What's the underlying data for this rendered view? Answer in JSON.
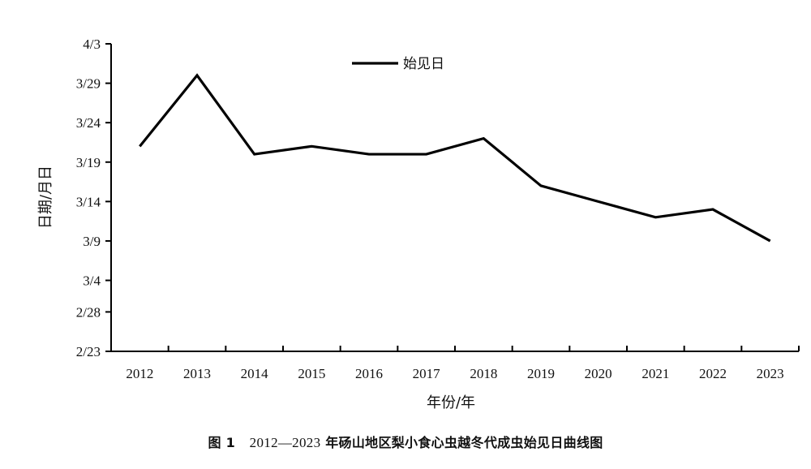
{
  "chart_data": {
    "type": "line",
    "title": "",
    "xlabel": "年份/年",
    "ylabel": "日期/月日",
    "categories": [
      "2012",
      "2013",
      "2014",
      "2015",
      "2016",
      "2017",
      "2018",
      "2019",
      "2020",
      "2021",
      "2022",
      "2023"
    ],
    "y_ticks": [
      "4/3",
      "3/29",
      "3/24",
      "3/19",
      "3/14",
      "3/9",
      "3/4",
      "2/28",
      "2/23"
    ],
    "ylim": [
      "2/23",
      "4/3"
    ],
    "series": [
      {
        "name": "始见日",
        "values": [
          "3/21",
          "3/30",
          "3/20",
          "3/21",
          "3/20",
          "3/20",
          "3/22",
          "3/16",
          "3/14",
          "3/12",
          "3/13",
          "3/9"
        ],
        "color": "#000000"
      }
    ],
    "legend_position": "top-center",
    "grid": false
  },
  "caption": {
    "figure_label": "图 1",
    "years": "2012—2023",
    "text": "年砀山地区梨小食心虫越冬代成虫始见日曲线图"
  }
}
